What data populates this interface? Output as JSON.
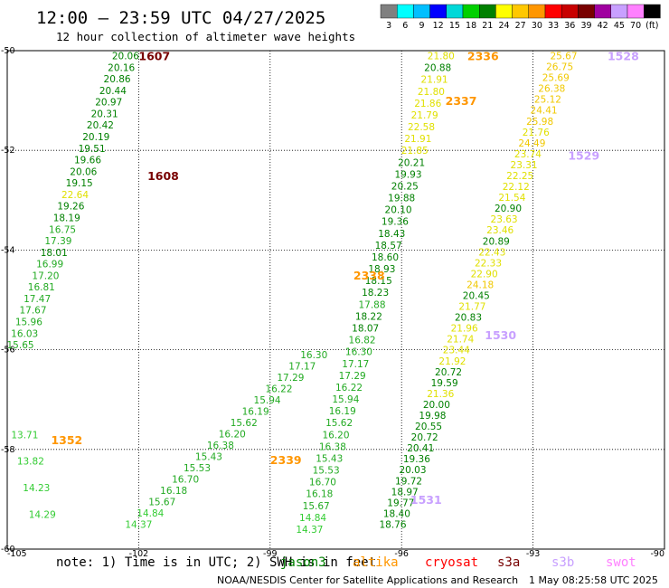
{
  "title": "12:00 — 23:59 UTC 04/27/2025",
  "subtitle": "12 hour collection of altimeter wave heights",
  "note": "note:  1) Time is in UTC; 2) SWH is in feet",
  "credit": "NOAA/NESDIS Center for Satellite Applications and Research",
  "timestamp": "1 May 08:25:58 UTC 2025",
  "colorbar": {
    "ticks": [
      "3",
      "6",
      "9",
      "12",
      "15",
      "18",
      "21",
      "24",
      "27",
      "30",
      "33",
      "36",
      "39",
      "42",
      "45",
      "70",
      "(ft)"
    ],
    "colors": [
      "#808080",
      "#00ffff",
      "#00bfff",
      "#0000ff",
      "#00d8d8",
      "#00d000",
      "#008000",
      "#ffff00",
      "#ffc800",
      "#ff9600",
      "#ff0000",
      "#c80000",
      "#780000",
      "#a000a0",
      "#c8a0ff",
      "#ff80ff",
      "#000000"
    ]
  },
  "legend": [
    {
      "name": "jason3",
      "color": "#008000"
    },
    {
      "name": "altika",
      "color": "#ff9600"
    },
    {
      "name": "cryosat",
      "color": "#ff0000"
    },
    {
      "name": "s3a",
      "color": "#780000"
    },
    {
      "name": "s3b",
      "color": "#c8a0ff"
    },
    {
      "name": "swot",
      "color": "#ff80ff"
    }
  ],
  "chart_data": {
    "type": "scatter",
    "xlim": [
      -105,
      -90
    ],
    "ylim": [
      -60,
      -50
    ],
    "x_ticks": [
      -105,
      -102,
      -99,
      -96,
      -93,
      -90
    ],
    "x_tick_labels": [
      "-105",
      "-102",
      "-99",
      "-96",
      "-93",
      "-90"
    ],
    "y_ticks": [
      -50,
      -52,
      -54,
      -56,
      -58,
      -60
    ],
    "y_tick_labels": [
      "-50",
      "-52",
      "-54",
      "-56",
      "-58",
      "-60"
    ],
    "grid": true,
    "series": [
      {
        "color_key": "track1",
        "x_start": -102.3,
        "y_start": -50.1,
        "x_end": -104.7,
        "y_end": -55.9,
        "values": [
          "20.06",
          "20.16",
          "20.86",
          "20.44",
          "20.97",
          "20.31",
          "20.42",
          "20.19",
          "19.51",
          "19.66",
          "20.06",
          "19.15",
          "22.64",
          "19.26",
          "18.19",
          "16.75",
          "17.39",
          "18.01",
          "16.99",
          "17.20",
          "16.81",
          "17.47",
          "17.67",
          "15.96",
          "16.03",
          "15.65"
        ]
      },
      {
        "x_start": -98.0,
        "y_start": -56.1,
        "x_end": -102.0,
        "y_end": -59.5,
        "values": [
          "16.30",
          "17.17",
          "17.29",
          "16.22",
          "15.94",
          "16.19",
          "15.62",
          "16.20",
          "16.38",
          "15.43",
          "15.53",
          "16.70",
          "16.18",
          "15.67",
          "14.84",
          "14.37"
        ]
      },
      {
        "x_start": -95.1,
        "y_start": -50.1,
        "x_end": -98.1,
        "y_end": -59.6,
        "values": [
          "21.80",
          "20.88",
          "21.91",
          "21.80",
          "21.86",
          "21.79",
          "22.58",
          "21.91",
          "21.85",
          "20.21",
          "19.93",
          "20.25",
          "19.88",
          "20.10",
          "19.36",
          "18.43",
          "18.57",
          "18.60",
          "18.93",
          "18.15",
          "18.23",
          "17.88",
          "18.22",
          "18.07",
          "16.82",
          "16.30",
          "17.17",
          "17.29",
          "16.22",
          "15.94",
          "16.19",
          "15.62",
          "16.20",
          "16.38",
          "15.43",
          "15.53",
          "16.70",
          "16.18",
          "15.67",
          "14.84",
          "14.37"
        ]
      },
      {
        "x_start": -92.3,
        "y_start": -50.1,
        "x_end": -96.2,
        "y_end": -59.5,
        "values": [
          "25.67",
          "26.75",
          "25.69",
          "26.38",
          "25.12",
          "24.41",
          "25.98",
          "21.76",
          "24.49",
          "23.74",
          "23.31",
          "22.25",
          "22.12",
          "21.54",
          "20.90",
          "23.63",
          "23.46",
          "20.89",
          "22.43",
          "22.33",
          "22.90",
          "24.18",
          "20.45",
          "21.77",
          "20.83",
          "21.96",
          "21.74",
          "23.44",
          "21.92",
          "20.72",
          "19.59",
          "21.36",
          "20.00",
          "19.98",
          "20.55",
          "20.72",
          "20.41",
          "19.36",
          "20.03",
          "19.72",
          "18.97",
          "19.77",
          "18.40",
          "18.76"
        ]
      },
      {
        "x_start": -104.6,
        "y_start": -57.7,
        "x_end": -104.2,
        "y_end": -59.3,
        "values": [
          "13.71",
          "13.82",
          "14.23",
          "14.29"
        ]
      }
    ],
    "pass_labels": [
      {
        "text": "1607",
        "lon": -102.0,
        "lat": -50.1,
        "color": "#780000"
      },
      {
        "text": "1608",
        "lon": -101.8,
        "lat": -52.5,
        "color": "#780000"
      },
      {
        "text": "2336",
        "lon": -94.5,
        "lat": -50.1,
        "color": "#ff9600"
      },
      {
        "text": "2337",
        "lon": -95.0,
        "lat": -51.0,
        "color": "#ff9600"
      },
      {
        "text": "2338",
        "lon": -97.1,
        "lat": -54.5,
        "color": "#ff9600"
      },
      {
        "text": "2339",
        "lon": -99.0,
        "lat": -58.2,
        "color": "#ff9600"
      },
      {
        "text": "1352",
        "lon": -104.0,
        "lat": -57.8,
        "color": "#ff9600"
      },
      {
        "text": "1528",
        "lon": -91.3,
        "lat": -50.1,
        "color": "#c8a0ff"
      },
      {
        "text": "1529",
        "lon": -92.2,
        "lat": -52.1,
        "color": "#c8a0ff"
      },
      {
        "text": "1530",
        "lon": -94.1,
        "lat": -55.7,
        "color": "#c8a0ff"
      },
      {
        "text": "1531",
        "lon": -95.8,
        "lat": -59.0,
        "color": "#c8a0ff"
      }
    ]
  }
}
